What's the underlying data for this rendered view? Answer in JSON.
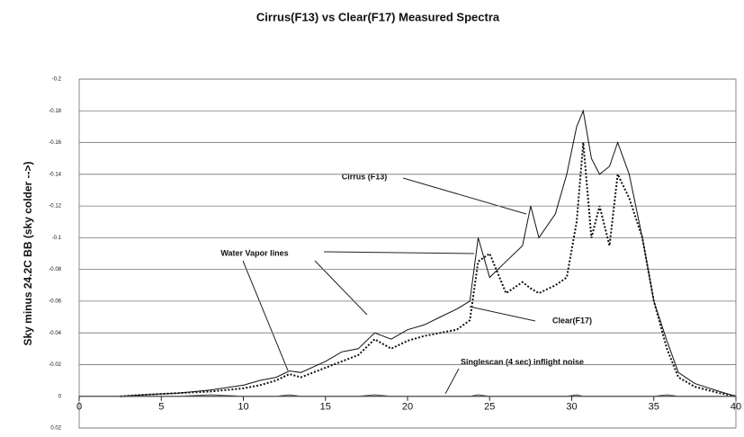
{
  "chart_data": {
    "type": "line",
    "title": "Cirrus(F13) vs Clear(F17) Measured Spectra",
    "ylabel": "Sky minus 24.2C BB (sky colder -->)",
    "annotations": [
      "Cirrus (F13)",
      "Water Vapor lines",
      "Clear(F17)",
      "Singlescan (4 sec) inflight noise"
    ],
    "x": [
      2.5,
      4,
      6,
      8,
      10,
      11,
      12,
      12.8,
      13.5,
      15,
      16,
      17,
      18,
      19,
      20,
      21,
      22,
      23,
      23.8,
      24.3,
      25,
      26,
      27,
      27.5,
      28,
      29,
      29.7,
      30.3,
      30.7,
      31.2,
      31.7,
      32.3,
      32.8,
      33.5,
      34.3,
      35,
      35.8,
      36.5,
      37.5,
      39,
      40
    ],
    "series": [
      {
        "name": "Cirrus (F13)",
        "color": "#111111",
        "dash": "solid",
        "values": [
          0,
          -0.001,
          -0.002,
          -0.004,
          -0.007,
          -0.01,
          -0.012,
          -0.016,
          -0.015,
          -0.022,
          -0.028,
          -0.03,
          -0.04,
          -0.036,
          -0.042,
          -0.045,
          -0.05,
          -0.055,
          -0.06,
          -0.1,
          -0.075,
          -0.085,
          -0.095,
          -0.12,
          -0.1,
          -0.115,
          -0.14,
          -0.17,
          -0.18,
          -0.15,
          -0.14,
          -0.145,
          -0.16,
          -0.14,
          -0.1,
          -0.06,
          -0.035,
          -0.015,
          -0.008,
          -0.003,
          0
        ]
      },
      {
        "name": "Clear(F17)",
        "color": "#111111",
        "dash": "dotted",
        "values": [
          0,
          -0.001,
          -0.002,
          -0.003,
          -0.005,
          -0.007,
          -0.01,
          -0.014,
          -0.012,
          -0.018,
          -0.022,
          -0.026,
          -0.036,
          -0.03,
          -0.035,
          -0.038,
          -0.04,
          -0.042,
          -0.048,
          -0.085,
          -0.09,
          -0.065,
          -0.072,
          -0.068,
          -0.065,
          -0.07,
          -0.075,
          -0.11,
          -0.16,
          -0.1,
          -0.12,
          -0.095,
          -0.14,
          -0.125,
          -0.1,
          -0.06,
          -0.03,
          -0.012,
          -0.006,
          -0.002,
          0
        ]
      },
      {
        "name": "Singlescan (4 sec) inflight noise",
        "color": "#555555",
        "dash": "solid",
        "values": [
          0,
          0,
          0,
          -0.001,
          0,
          0,
          0,
          -0.001,
          0,
          0,
          0,
          0,
          -0.001,
          0,
          0,
          0,
          0,
          0,
          0,
          -0.001,
          0,
          0,
          0,
          0,
          0,
          0,
          0,
          -0.001,
          0,
          0,
          0,
          0,
          0,
          0,
          0,
          0,
          -0.001,
          0,
          0,
          0,
          0
        ]
      }
    ],
    "xlim": [
      0,
      40
    ],
    "xticks": [
      0,
      5,
      10,
      15,
      20,
      25,
      30,
      35,
      40
    ],
    "ylim": [
      0.02,
      -0.2
    ],
    "yticks": [
      0.02,
      0,
      -0.02,
      -0.04,
      -0.06,
      -0.08,
      -0.1,
      -0.12,
      -0.14,
      -0.16,
      -0.18,
      -0.2
    ],
    "grid": true
  }
}
